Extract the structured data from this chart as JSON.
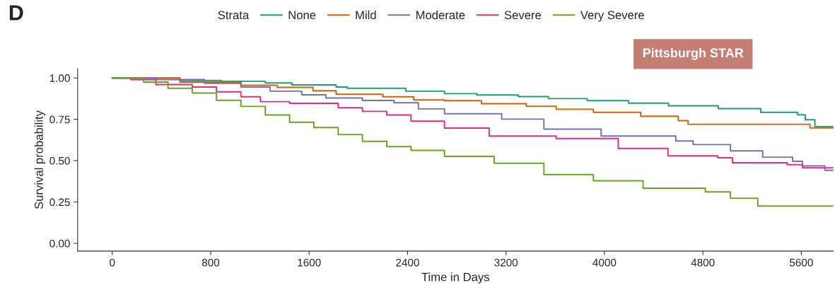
{
  "chart_data": {
    "type": "step",
    "xlabel": "Time in Days",
    "ylabel": "Survival probability",
    "legend_title": "Strata",
    "legend": "top",
    "annotations": [
      "D",
      "Pittsburgh STAR"
    ],
    "xlim": [
      -281,
      5860
    ],
    "xticks": [
      0,
      800,
      1600,
      2400,
      3200,
      4000,
      4800,
      5600
    ],
    "ylim": [
      -0.047,
      1.056
    ],
    "yticks": [
      {
        "value": 0,
        "label": "0.00"
      },
      {
        "value": 0.25,
        "label": "0.25"
      },
      {
        "value": 0.5,
        "label": "0.50"
      },
      {
        "value": 0.75,
        "label": "0.75"
      },
      {
        "value": 1,
        "label": "1.00"
      }
    ],
    "grid": false,
    "series": [
      {
        "name": "None",
        "color": "#1b9e77",
        "x": [
          0,
          550,
          888,
          1244,
          1460,
          1820,
          1910,
          2385,
          2700,
          2963,
          3300,
          3545,
          3860,
          4195,
          4520,
          4925,
          5270,
          5570,
          5632,
          5710,
          5860
        ],
        "values": [
          1.0,
          0.985,
          0.98,
          0.97,
          0.958,
          0.945,
          0.938,
          0.92,
          0.905,
          0.897,
          0.887,
          0.875,
          0.863,
          0.848,
          0.832,
          0.815,
          0.792,
          0.777,
          0.747,
          0.706,
          0.706
        ]
      },
      {
        "name": "Mild",
        "color": "#d95f02",
        "x": [
          0,
          550,
          1046,
          1341,
          1632,
          1820,
          2200,
          2450,
          2700,
          3000,
          3365,
          3608,
          3910,
          4295,
          4600,
          4680,
          5670,
          5860
        ],
        "values": [
          1.0,
          0.975,
          0.956,
          0.943,
          0.923,
          0.901,
          0.886,
          0.867,
          0.863,
          0.845,
          0.829,
          0.811,
          0.792,
          0.769,
          0.742,
          0.72,
          0.698,
          0.698
        ]
      },
      {
        "name": "Moderate",
        "color": "#7570b3",
        "x": [
          0,
          360,
          750,
          1046,
          1283,
          1540,
          1737,
          2033,
          2290,
          2488,
          2700,
          3165,
          3508,
          3973,
          4580,
          4721,
          5024,
          5286,
          5529,
          5610,
          5792,
          5860
        ],
        "values": [
          1.0,
          0.99,
          0.967,
          0.945,
          0.92,
          0.898,
          0.879,
          0.864,
          0.85,
          0.813,
          0.784,
          0.751,
          0.691,
          0.649,
          0.619,
          0.597,
          0.559,
          0.521,
          0.496,
          0.468,
          0.441,
          0.441
        ]
      },
      {
        "name": "Severe",
        "color": "#e7298a",
        "x": [
          0,
          150,
          354,
          650,
          847,
          1046,
          1204,
          1441,
          1836,
          2033,
          2231,
          2428,
          2700,
          3063,
          3608,
          4112,
          4516,
          4920,
          5040,
          5485,
          5610,
          5860
        ],
        "values": [
          1.0,
          0.99,
          0.96,
          0.945,
          0.916,
          0.886,
          0.857,
          0.847,
          0.82,
          0.798,
          0.776,
          0.739,
          0.697,
          0.649,
          0.634,
          0.574,
          0.529,
          0.517,
          0.487,
          0.476,
          0.456,
          0.456
        ]
      },
      {
        "name": "Very Severe",
        "color": "#66a61e",
        "x": [
          0,
          255,
          453,
          650,
          847,
          1046,
          1244,
          1441,
          1638,
          1836,
          2033,
          2231,
          2428,
          2700,
          3104,
          3508,
          3910,
          4314,
          4820,
          5024,
          5246,
          5860
        ],
        "values": [
          1.0,
          0.975,
          0.938,
          0.909,
          0.865,
          0.828,
          0.776,
          0.732,
          0.7,
          0.658,
          0.617,
          0.585,
          0.562,
          0.526,
          0.484,
          0.416,
          0.378,
          0.333,
          0.311,
          0.273,
          0.225,
          0.225
        ]
      }
    ]
  }
}
